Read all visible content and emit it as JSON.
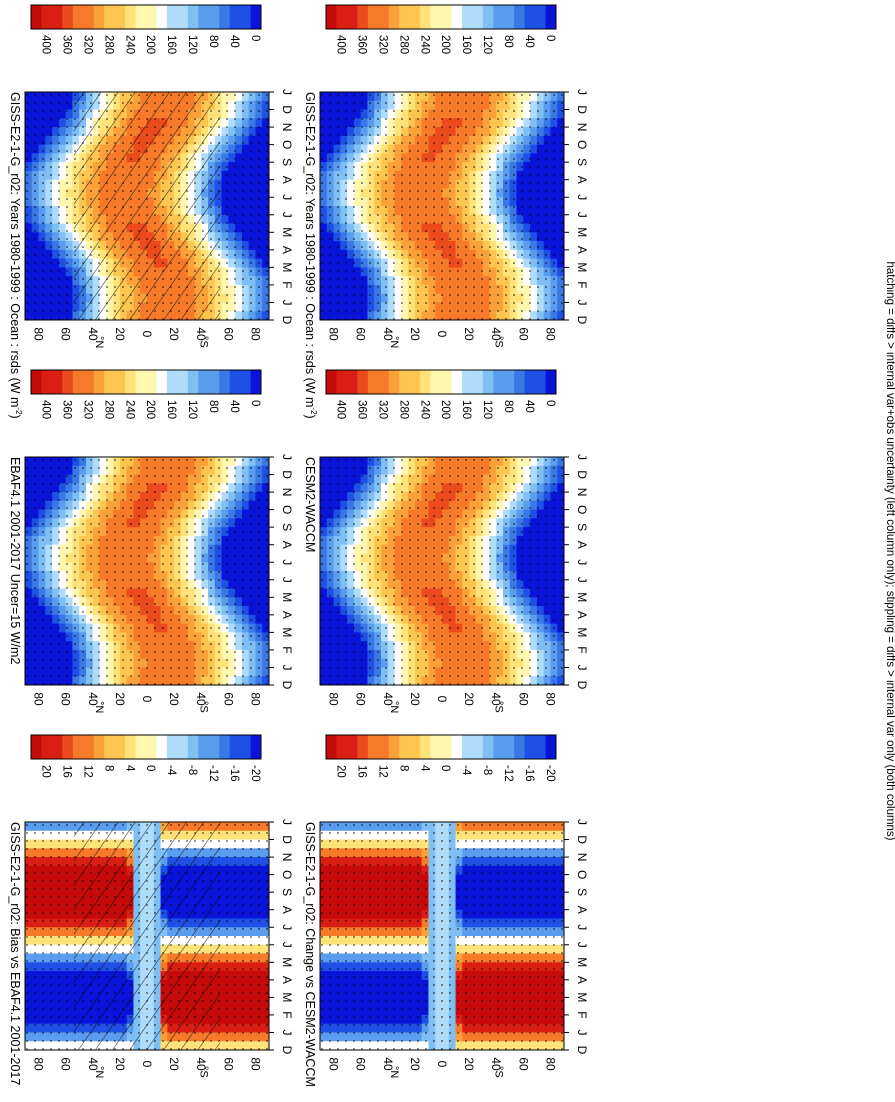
{
  "chart_data": [
    {
      "type": "heatmap",
      "title": "GISS-E2-1-G_r02: Years 1980-1999 : Ocean : rsds (W m",
      "title_sup": "-2",
      "title_close": ")",
      "months": [
        "J",
        "F",
        "M",
        "A",
        "M",
        "J",
        "J",
        "A",
        "S",
        "O",
        "N",
        "D",
        "J"
      ],
      "month_row_lead": "D",
      "lat_ticks": [
        "80",
        "60",
        "40",
        "20",
        "0",
        "20",
        "40",
        "60",
        "80"
      ],
      "hemi": {
        "north": "°N",
        "south": "°S"
      },
      "colorbar": {
        "labels": [
          "400",
          "360",
          "320",
          "280",
          "240",
          "200",
          "160",
          "120",
          "80",
          "40",
          "0"
        ],
        "range": [
          0,
          420
        ]
      },
      "field": "insolation",
      "hatching": true,
      "stippling": true
    },
    {
      "type": "heatmap",
      "title": "GISS-E2-1-G_r02: Years 1980-1999 : Ocean : rsds (W m",
      "title_sup": "-2",
      "title_close": ")",
      "months": [
        "J",
        "F",
        "M",
        "A",
        "M",
        "J",
        "J",
        "A",
        "S",
        "O",
        "N",
        "D",
        "J"
      ],
      "month_row_lead": "D",
      "lat_ticks": [
        "80",
        "60",
        "40",
        "20",
        "0",
        "20",
        "40",
        "60",
        "80"
      ],
      "hemi": {
        "north": "°N",
        "south": "°S"
      },
      "colorbar": {
        "labels": [
          "400",
          "360",
          "320",
          "280",
          "240",
          "200",
          "160",
          "120",
          "80",
          "40",
          "0"
        ],
        "range": [
          0,
          420
        ]
      },
      "field": "insolation",
      "hatching": false,
      "stippling": true
    },
    {
      "type": "heatmap",
      "title": "EBAF4.1 2001-2017 Uncer=15 W/m2",
      "months": [
        "J",
        "F",
        "M",
        "A",
        "M",
        "J",
        "J",
        "A",
        "S",
        "O",
        "N",
        "D",
        "J"
      ],
      "month_row_lead": "D",
      "lat_ticks": [
        "80",
        "60",
        "40",
        "20",
        "0",
        "20",
        "40",
        "60",
        "80"
      ],
      "hemi": {
        "north": "°N",
        "south": "°S"
      },
      "colorbar": {
        "labels": [
          "400",
          "360",
          "320",
          "280",
          "240",
          "200",
          "160",
          "120",
          "80",
          "40",
          "0"
        ],
        "range": [
          0,
          420
        ]
      },
      "field": "insolation",
      "hatching": false,
      "stippling": true
    },
    {
      "type": "heatmap",
      "title": "CESM2-WACCM",
      "months": [
        "J",
        "F",
        "M",
        "A",
        "M",
        "J",
        "J",
        "A",
        "S",
        "O",
        "N",
        "D",
        "J"
      ],
      "month_row_lead": "D",
      "lat_ticks": [
        "80",
        "60",
        "40",
        "20",
        "0",
        "20",
        "40",
        "60",
        "80"
      ],
      "hemi": {
        "north": "°N",
        "south": "°S"
      },
      "colorbar": {
        "labels": [
          "400",
          "360",
          "320",
          "280",
          "240",
          "200",
          "160",
          "120",
          "80",
          "40",
          "0"
        ],
        "range": [
          0,
          420
        ]
      },
      "field": "insolation",
      "hatching": false,
      "stippling": true
    },
    {
      "type": "heatmap",
      "title": "GISS-E2-1-G_r02: Bias vs EBAF4.1 2001-2017",
      "months": [
        "J",
        "F",
        "M",
        "A",
        "M",
        "J",
        "J",
        "A",
        "S",
        "O",
        "N",
        "D",
        "J"
      ],
      "month_row_lead": "D",
      "lat_ticks": [
        "80",
        "60",
        "40",
        "20",
        "0",
        "20",
        "40",
        "60",
        "80"
      ],
      "hemi": {
        "north": "°N",
        "south": "°S"
      },
      "colorbar": {
        "labels": [
          "20",
          "16",
          "12",
          "8",
          "4",
          "0",
          "-4",
          "-8",
          "-12",
          "-16",
          "-20"
        ],
        "range": [
          -22,
          22
        ]
      },
      "field": "difference",
      "hatching": true,
      "stippling": true
    },
    {
      "type": "heatmap",
      "title": "GISS-E2-1-G_r02: Change vs CESM2-WACCM",
      "months": [
        "J",
        "F",
        "M",
        "A",
        "M",
        "J",
        "J",
        "A",
        "S",
        "O",
        "N",
        "D",
        "J"
      ],
      "month_row_lead": "D",
      "lat_ticks": [
        "80",
        "60",
        "40",
        "20",
        "0",
        "20",
        "40",
        "60",
        "80"
      ],
      "hemi": {
        "north": "°N",
        "south": "°S"
      },
      "colorbar": {
        "labels": [
          "20",
          "16",
          "12",
          "8",
          "4",
          "0",
          "-4",
          "-8",
          "-12",
          "-16",
          "-20"
        ],
        "range": [
          -22,
          22
        ]
      },
      "field": "difference",
      "hatching": false,
      "stippling": true
    }
  ],
  "footnote": "hatching = diffs > internal var+obs uncertainty (left column only); stippling = diffs > internal var only (both columns)",
  "colors": {
    "warm_scale": [
      "#0a14d8",
      "#1e50e6",
      "#3a78e6",
      "#5a9cee",
      "#7fbff4",
      "#aedcfa",
      "#ffffff",
      "#fff7b0",
      "#ffe37a",
      "#fdc650",
      "#fba13a",
      "#f77a2a",
      "#ea4a1c",
      "#d91e14",
      "#c40a0a"
    ],
    "frame": "#000000"
  }
}
